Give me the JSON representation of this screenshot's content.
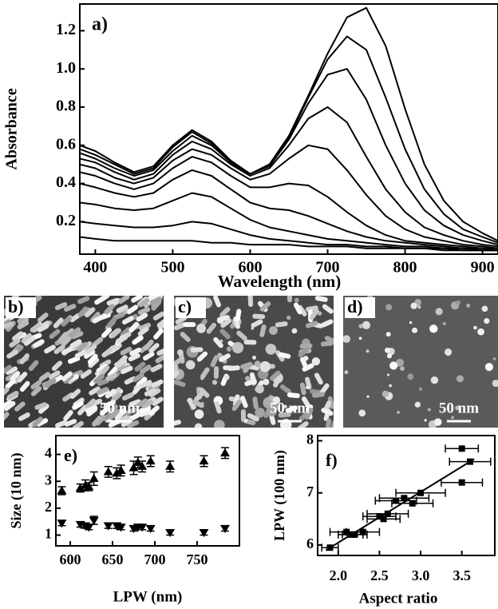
{
  "chart_data": [
    {
      "type": "line",
      "panel_label": "a)",
      "xlabel": "Wavelength (nm)",
      "ylabel": "Absorbance",
      "color": "#000000",
      "x": [
        380,
        400,
        425,
        450,
        475,
        500,
        525,
        550,
        575,
        600,
        625,
        650,
        675,
        700,
        725,
        750,
        775,
        800,
        825,
        850,
        875,
        900,
        920
      ],
      "xlim": [
        380,
        920
      ],
      "ylim": [
        0.03,
        1.34
      ],
      "xticks": [
        400,
        500,
        600,
        700,
        800,
        900
      ],
      "yticks": [
        0.2,
        0.4,
        0.6,
        0.8,
        {
          "value": 1,
          "label": "1.0"
        },
        1.2
      ],
      "series": [
        {
          "values": [
            0.12,
            0.11,
            0.1,
            0.1,
            0.1,
            0.1,
            0.1,
            0.09,
            0.09,
            0.08,
            0.08,
            0.08,
            0.07,
            0.07,
            0.07,
            0.06,
            0.06,
            0.06,
            0.06,
            0.05,
            0.05,
            0.05,
            0.05
          ]
        },
        {
          "values": [
            0.2,
            0.19,
            0.18,
            0.17,
            0.17,
            0.18,
            0.2,
            0.19,
            0.16,
            0.13,
            0.11,
            0.1,
            0.09,
            0.08,
            0.08,
            0.07,
            0.07,
            0.06,
            0.06,
            0.06,
            0.05,
            0.05,
            0.05
          ]
        },
        {
          "values": [
            0.3,
            0.29,
            0.27,
            0.26,
            0.27,
            0.31,
            0.35,
            0.33,
            0.27,
            0.21,
            0.17,
            0.15,
            0.13,
            0.11,
            0.1,
            0.09,
            0.08,
            0.07,
            0.07,
            0.06,
            0.06,
            0.05,
            0.05
          ]
        },
        {
          "values": [
            0.4,
            0.38,
            0.35,
            0.33,
            0.35,
            0.42,
            0.47,
            0.44,
            0.37,
            0.3,
            0.27,
            0.26,
            0.23,
            0.19,
            0.15,
            0.12,
            0.1,
            0.09,
            0.08,
            0.07,
            0.06,
            0.06,
            0.05
          ]
        },
        {
          "values": [
            0.46,
            0.44,
            0.4,
            0.37,
            0.4,
            0.48,
            0.54,
            0.51,
            0.44,
            0.38,
            0.38,
            0.4,
            0.39,
            0.33,
            0.25,
            0.18,
            0.13,
            0.1,
            0.09,
            0.08,
            0.07,
            0.06,
            0.06
          ]
        },
        {
          "values": [
            0.5,
            0.48,
            0.43,
            0.4,
            0.43,
            0.52,
            0.58,
            0.55,
            0.48,
            0.42,
            0.45,
            0.53,
            0.6,
            0.58,
            0.47,
            0.34,
            0.23,
            0.16,
            0.12,
            0.1,
            0.08,
            0.07,
            0.06
          ]
        },
        {
          "values": [
            0.53,
            0.51,
            0.46,
            0.42,
            0.45,
            0.55,
            0.62,
            0.58,
            0.5,
            0.44,
            0.48,
            0.6,
            0.74,
            0.8,
            0.72,
            0.54,
            0.37,
            0.25,
            0.17,
            0.13,
            0.1,
            0.08,
            0.07
          ]
        },
        {
          "values": [
            0.56,
            0.53,
            0.48,
            0.44,
            0.47,
            0.57,
            0.65,
            0.6,
            0.51,
            0.45,
            0.49,
            0.63,
            0.82,
            0.97,
            1.0,
            0.84,
            0.6,
            0.4,
            0.26,
            0.18,
            0.13,
            0.1,
            0.08
          ]
        },
        {
          "values": [
            0.58,
            0.55,
            0.5,
            0.45,
            0.48,
            0.59,
            0.67,
            0.61,
            0.51,
            0.45,
            0.5,
            0.64,
            0.85,
            1.05,
            1.17,
            1.1,
            0.85,
            0.58,
            0.37,
            0.24,
            0.16,
            0.12,
            0.09
          ]
        },
        {
          "values": [
            0.6,
            0.57,
            0.51,
            0.46,
            0.49,
            0.6,
            0.68,
            0.62,
            0.52,
            0.45,
            0.5,
            0.65,
            0.86,
            1.08,
            1.27,
            1.32,
            1.12,
            0.79,
            0.5,
            0.31,
            0.2,
            0.14,
            0.1
          ]
        }
      ]
    },
    {
      "type": "scatter",
      "panel_label": "e)",
      "xlabel": "LPW (nm)",
      "ylabel": "Size (10 nm)",
      "color": "#000000",
      "x": [
        590,
        612,
        618,
        622,
        628,
        645,
        655,
        660,
        675,
        680,
        685,
        695,
        718,
        758,
        783
      ],
      "xlim": [
        583,
        800
      ],
      "ylim": [
        0.6,
        4.7
      ],
      "xticks": [
        600,
        650,
        700,
        750
      ],
      "yticks": [
        1,
        2,
        3,
        4
      ],
      "series": [
        {
          "marker": "triangle-up",
          "values": [
            2.65,
            2.75,
            2.85,
            2.8,
            3.1,
            3.35,
            3.3,
            3.4,
            3.5,
            3.7,
            3.55,
            3.75,
            3.55,
            3.75,
            4.05
          ],
          "errors": [
            0.15,
            0.15,
            0.2,
            0.15,
            0.25,
            0.2,
            0.2,
            0.2,
            0.25,
            0.2,
            0.2,
            0.2,
            0.2,
            0.2,
            0.2
          ]
        },
        {
          "marker": "triangle-down",
          "values": [
            1.45,
            1.4,
            1.35,
            1.3,
            1.55,
            1.35,
            1.35,
            1.3,
            1.25,
            1.3,
            1.3,
            1.25,
            1.1,
            1.1,
            1.25
          ],
          "errors": [
            0.1,
            0.1,
            0.1,
            0.1,
            0.15,
            0.1,
            0.1,
            0.1,
            0.1,
            0.1,
            0.1,
            0.1,
            0.1,
            0.1,
            0.1
          ]
        }
      ]
    },
    {
      "type": "scatter",
      "panel_label": "f)",
      "xlabel": "Aspect ratio",
      "ylabel": "LPW (100 nm)",
      "color": "#000000",
      "xlim": [
        1.75,
        3.9
      ],
      "ylim": [
        5.8,
        8.1
      ],
      "xticks": [
        {
          "value": 2,
          "label": "2.0"
        },
        2.5,
        {
          "value": 3,
          "label": "3.0"
        },
        3.5
      ],
      "yticks": [
        6,
        7,
        8
      ],
      "series": [
        {
          "marker": "square",
          "x": [
            1.9,
            2.1,
            2.15,
            2.2,
            2.3,
            2.5,
            2.55,
            2.6,
            2.7,
            2.8,
            2.9,
            3.0,
            3.5,
            3.6,
            3.5
          ],
          "values": [
            5.95,
            6.25,
            6.2,
            6.2,
            6.25,
            6.55,
            6.5,
            6.6,
            6.85,
            6.9,
            6.8,
            7.0,
            7.85,
            7.6,
            7.2
          ],
          "x_errors": [
            0.1,
            0.2,
            0.15,
            0.15,
            0.2,
            0.2,
            0.2,
            0.25,
            0.25,
            0.3,
            0.25,
            0.3,
            0.2,
            0.25,
            0.25
          ]
        }
      ],
      "fit": {
        "x": [
          1.85,
          3.65
        ],
        "values": [
          5.9,
          7.65
        ]
      }
    }
  ],
  "images": [
    {
      "label": "b)",
      "scale_bar": "50 nm"
    },
    {
      "label": "c)",
      "scale_bar": "50 nm"
    },
    {
      "label": "d)",
      "scale_bar": "50 nm"
    }
  ]
}
